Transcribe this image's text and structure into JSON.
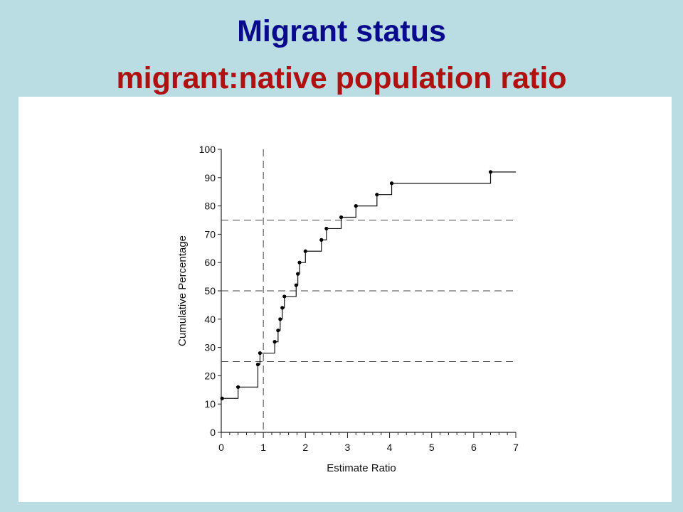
{
  "slide": {
    "title": "Migrant status",
    "subtitle": "migrant:native population ratio",
    "title_color": "#0a0a8c",
    "subtitle_color": "#b01010",
    "background": "#b9dde2"
  },
  "chart_data": {
    "type": "line",
    "subtype": "step",
    "title": "",
    "xlabel": "Estimate Ratio",
    "ylabel": "Cumulative Percentage",
    "xlim": [
      0,
      7
    ],
    "ylim": [
      0,
      100
    ],
    "xticks": [
      0,
      1,
      2,
      3,
      4,
      5,
      6,
      7
    ],
    "yticks": [
      0,
      10,
      20,
      30,
      40,
      50,
      60,
      70,
      80,
      90,
      100
    ],
    "x_minor_ticks_per_unit": 5,
    "reference_lines": {
      "vertical_x": [
        1
      ],
      "horizontal_y": [
        25,
        50,
        75
      ],
      "style": "dashed"
    },
    "grid": false,
    "legend": "none",
    "series": [
      {
        "points": [
          {
            "x": 0.02,
            "y": 12
          },
          {
            "x": 0.4,
            "y": 16
          },
          {
            "x": 0.87,
            "y": 24
          },
          {
            "x": 0.92,
            "y": 28
          },
          {
            "x": 1.27,
            "y": 32
          },
          {
            "x": 1.35,
            "y": 36
          },
          {
            "x": 1.4,
            "y": 40
          },
          {
            "x": 1.45,
            "y": 44
          },
          {
            "x": 1.5,
            "y": 48
          },
          {
            "x": 1.78,
            "y": 52
          },
          {
            "x": 1.82,
            "y": 56
          },
          {
            "x": 1.86,
            "y": 60
          },
          {
            "x": 2.0,
            "y": 64
          },
          {
            "x": 2.38,
            "y": 68
          },
          {
            "x": 2.5,
            "y": 72
          },
          {
            "x": 2.85,
            "y": 76
          },
          {
            "x": 3.2,
            "y": 80
          },
          {
            "x": 3.7,
            "y": 84
          },
          {
            "x": 4.05,
            "y": 88
          },
          {
            "x": 6.4,
            "y": 92
          }
        ],
        "step_end_x": 7
      }
    ]
  }
}
